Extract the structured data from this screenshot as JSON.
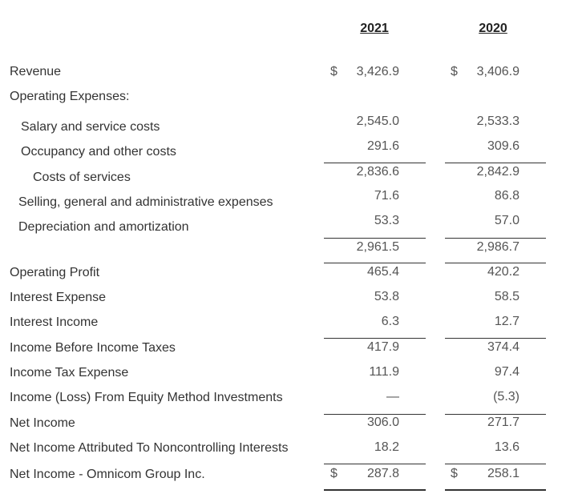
{
  "header": {
    "columns": [
      "2021",
      "2020"
    ]
  },
  "rows": [
    {
      "label": "Revenue",
      "values": [
        {
          "currency": "$",
          "amount": "3,426.9"
        },
        {
          "currency": "$",
          "amount": "3,406.9"
        }
      ]
    },
    {
      "label": "Operating Expenses:"
    },
    {
      "label": "Salary and service costs",
      "values": [
        {
          "amount": "2,545.0"
        },
        {
          "amount": "2,533.3"
        }
      ]
    },
    {
      "label": "Occupancy and other costs",
      "values": [
        {
          "amount": "291.6"
        },
        {
          "amount": "309.6"
        }
      ]
    },
    {
      "label": "Costs of services",
      "values": [
        {
          "amount": "2,836.6"
        },
        {
          "amount": "2,842.9"
        }
      ]
    },
    {
      "label": "Selling, general and administrative expenses",
      "values": [
        {
          "amount": "71.6"
        },
        {
          "amount": "86.8"
        }
      ]
    },
    {
      "label": "Depreciation and amortization",
      "values": [
        {
          "amount": "53.3"
        },
        {
          "amount": "57.0"
        }
      ]
    },
    {
      "values": [
        {
          "amount": "2,961.5"
        },
        {
          "amount": "2,986.7"
        }
      ]
    },
    {
      "label": "Operating Profit",
      "values": [
        {
          "amount": "465.4"
        },
        {
          "amount": "420.2"
        }
      ]
    },
    {
      "label": "Interest Expense",
      "values": [
        {
          "amount": "53.8"
        },
        {
          "amount": "58.5"
        }
      ]
    },
    {
      "label": "Interest Income",
      "values": [
        {
          "amount": "6.3"
        },
        {
          "amount": "12.7"
        }
      ]
    },
    {
      "label": "Income Before Income Taxes",
      "values": [
        {
          "amount": "417.9"
        },
        {
          "amount": "374.4"
        }
      ]
    },
    {
      "label": "Income Tax Expense",
      "values": [
        {
          "amount": "111.9"
        },
        {
          "amount": "97.4"
        }
      ]
    },
    {
      "label": "Income (Loss) From Equity Method Investments",
      "values": [
        {
          "amount": "—"
        },
        {
          "amount": "(5.3)"
        }
      ]
    },
    {
      "label": "Net Income",
      "values": [
        {
          "amount": "306.0"
        },
        {
          "amount": "271.7"
        }
      ]
    },
    {
      "label": "Net Income Attributed To Noncontrolling Interests",
      "values": [
        {
          "amount": "18.2"
        },
        {
          "amount": "13.6"
        }
      ]
    },
    {
      "label": "Net Income - Omnicom Group Inc.",
      "values": [
        {
          "currency": "$",
          "amount": "287.8"
        },
        {
          "currency": "$",
          "amount": "258.1"
        }
      ]
    }
  ]
}
